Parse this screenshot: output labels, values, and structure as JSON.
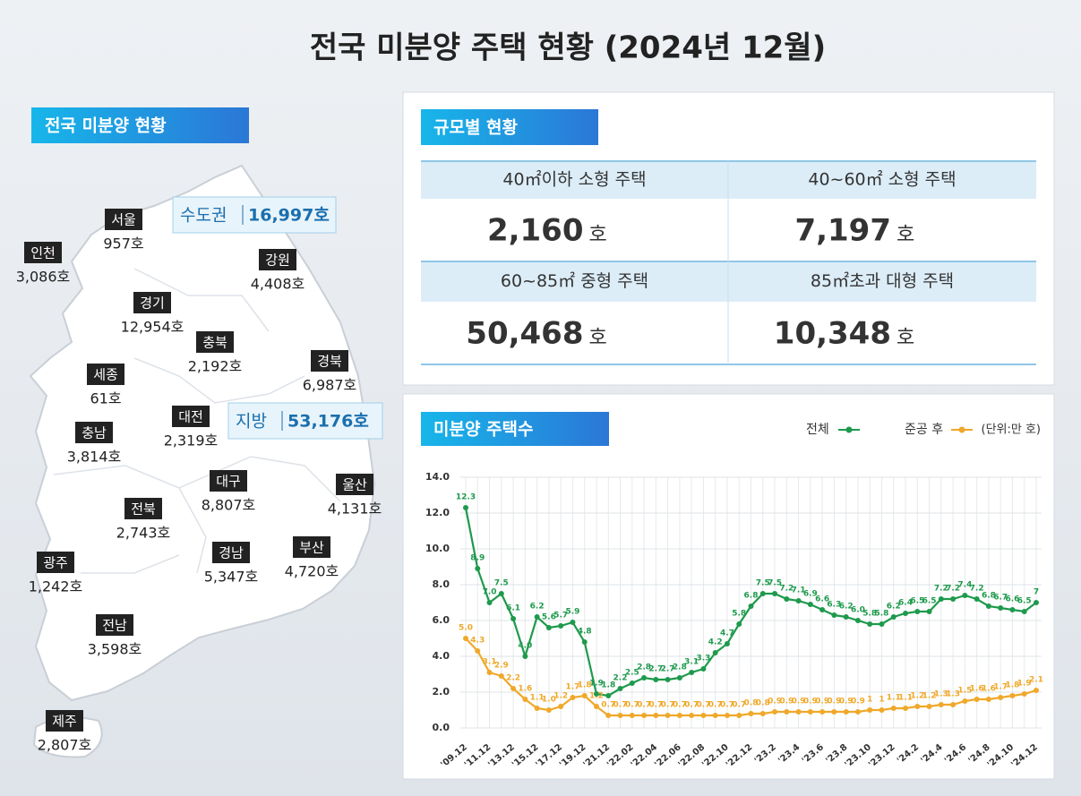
{
  "title": "전국 미분양 주택 현황 (2024년 12월)",
  "map": {
    "heading": "전국 미분양 현황",
    "callouts": [
      {
        "label": "수도권",
        "value": "16,997호"
      },
      {
        "label": "지방",
        "value": "53,176호"
      }
    ],
    "regions": [
      {
        "name": "서울",
        "count": "957호"
      },
      {
        "name": "인천",
        "count": "3,086호"
      },
      {
        "name": "강원",
        "count": "4,408호"
      },
      {
        "name": "경기",
        "count": "12,954호"
      },
      {
        "name": "충북",
        "count": "2,192호"
      },
      {
        "name": "경북",
        "count": "6,987호"
      },
      {
        "name": "세종",
        "count": "61호"
      },
      {
        "name": "대전",
        "count": "2,319호"
      },
      {
        "name": "충남",
        "count": "3,814호"
      },
      {
        "name": "대구",
        "count": "8,807호"
      },
      {
        "name": "울산",
        "count": "4,131호"
      },
      {
        "name": "전북",
        "count": "2,743호"
      },
      {
        "name": "부산",
        "count": "4,720호"
      },
      {
        "name": "경남",
        "count": "5,347호"
      },
      {
        "name": "광주",
        "count": "1,242호"
      },
      {
        "name": "전남",
        "count": "3,598호"
      },
      {
        "name": "제주",
        "count": "2,807호"
      }
    ]
  },
  "size_table": {
    "heading": "규모별 현황",
    "cells": [
      {
        "label": "40㎡이하 소형 주택",
        "value": "2,160",
        "unit": "호"
      },
      {
        "label": "40~60㎡ 소형 주택",
        "value": "7,197",
        "unit": "호"
      },
      {
        "label": "60~85㎡ 중형 주택",
        "value": "50,468",
        "unit": "호"
      },
      {
        "label": "85㎡초과 대형 주택",
        "value": "10,348",
        "unit": "호"
      }
    ]
  },
  "chart_data": {
    "type": "line",
    "title": "미분양 주택수",
    "unit_note": "(단위:만 호)",
    "categories": [
      "'09.12",
      null,
      "'11.12",
      null,
      "'13.12",
      null,
      "'15.12",
      null,
      "'17.12",
      null,
      "'19.12",
      null,
      "'21.12",
      null,
      "'22.02",
      null,
      "'22.04",
      null,
      "'22.06",
      null,
      "'22.08",
      null,
      "'22.10",
      null,
      "'22.12",
      null,
      "'23.2",
      null,
      "'23.4",
      null,
      "'23.6",
      null,
      "'23.8",
      null,
      "'23.10",
      null,
      "'23.12",
      null,
      "'24.2",
      null,
      "'24.4",
      null,
      "'24.6",
      null,
      "'24.8",
      null,
      "'24.10",
      null,
      "'24.12"
    ],
    "series": [
      {
        "name": "전체",
        "color": "#1e9a4c",
        "values": [
          12.3,
          8.9,
          7.0,
          7.5,
          6.1,
          4.0,
          6.2,
          5.6,
          5.7,
          5.9,
          4.8,
          1.9,
          1.8,
          2.2,
          2.5,
          2.8,
          2.7,
          2.7,
          2.8,
          3.1,
          3.3,
          4.2,
          4.7,
          5.8,
          6.8,
          7.5,
          7.5,
          7.2,
          7.1,
          6.9,
          6.6,
          6.3,
          6.2,
          6.0,
          5.8,
          5.8,
          6.2,
          6.4,
          6.5,
          6.5,
          7.2,
          7.2,
          7.4,
          7.2,
          6.8,
          6.7,
          6.6,
          6.5,
          7
        ],
        "value_labels": [
          "12.3",
          "8.9",
          "7.0",
          "7.5",
          "6.1",
          "4.0",
          "6.2",
          "5.6",
          "5.7",
          "5.9",
          "4.8",
          "1.9",
          "1.8",
          "2.2",
          "2.5",
          "2.8",
          "2.7",
          "2.7",
          "2.8",
          "3.1",
          "3.3",
          "4.2",
          "4.7",
          "5.8",
          "6.8",
          "7.5",
          "7.5",
          "7.2",
          "7.1",
          "6.9",
          "6.6",
          "6.3",
          "6.2",
          "6.0",
          "5.8",
          "5.8",
          "6.2",
          "6.4",
          "6.5",
          "6.5",
          "7.2",
          "7.2",
          "7.4",
          "7.2",
          "6.8",
          "6.7",
          "6.6",
          "6.5",
          "7"
        ]
      },
      {
        "name": "준공 후",
        "color": "#f0a82a",
        "values": [
          5.0,
          4.3,
          3.1,
          2.9,
          2.2,
          1.6,
          1.1,
          1.0,
          1.2,
          1.7,
          1.8,
          1.2,
          0.7,
          0.7,
          0.7,
          0.7,
          0.7,
          0.7,
          0.7,
          0.7,
          0.7,
          0.7,
          0.7,
          0.7,
          0.8,
          0.8,
          0.9,
          0.9,
          0.9,
          0.9,
          0.9,
          0.9,
          0.9,
          0.9,
          1,
          1,
          1.1,
          1.1,
          1.2,
          1.2,
          1.3,
          1.3,
          1.5,
          1.6,
          1.6,
          1.7,
          1.8,
          1.9,
          2.1
        ],
        "value_labels": [
          "5.0",
          "4.3",
          "3.1",
          "2.9",
          "2.2",
          "1.6",
          "1.1",
          "1.0",
          "1.2",
          "1.7",
          "1.8",
          "1.2",
          "0.7",
          "0.7",
          "0.7",
          "0.7",
          "0.7",
          "0.7",
          "0.7",
          "0.7",
          "0.7",
          "0.7",
          "0.7",
          "0.7",
          "0.8",
          "0.8",
          "0.9",
          "0.9",
          "0.9",
          "0.9",
          "0.9",
          "0.9",
          "0.9",
          "0.9",
          "1",
          "1",
          "1.1",
          "1.1",
          "1.2",
          "1.2",
          "1.3",
          "1.3",
          "1.5",
          "1.6",
          "1.6",
          "1.7",
          "1.8",
          "1.9",
          "2.1"
        ]
      }
    ],
    "ylim": [
      0,
      14
    ],
    "yticks": [
      {
        "value": 0,
        "label": "0.0"
      },
      {
        "value": 2,
        "label": "2.0"
      },
      {
        "value": 4,
        "label": "4.0"
      },
      {
        "value": 6,
        "label": "6.0"
      },
      {
        "value": 8,
        "label": "8.0"
      },
      {
        "value": 10,
        "label": "10.0"
      },
      {
        "value": 12,
        "label": "12.0"
      },
      {
        "value": 14,
        "label": "14.0"
      }
    ],
    "grid": true,
    "legend": "top-right"
  }
}
